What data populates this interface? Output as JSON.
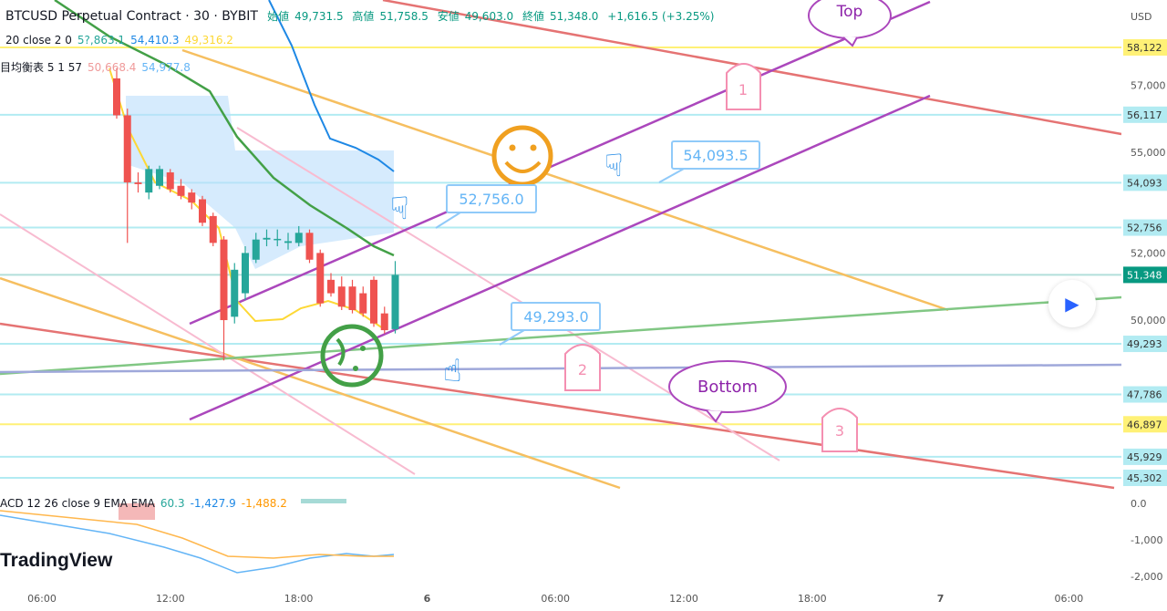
{
  "header": {
    "symbol": "BTCUSD Perpetual Contract · 30 · BYBIT",
    "open_label": "始値",
    "open": "49,731.5",
    "high_label": "高値",
    "high": "51,758.5",
    "low_label": "安値",
    "low": "49,603.0",
    "close_label": "終値",
    "close": "51,348.0",
    "change": "+1,616.5 (+3.25%)"
  },
  "indicators": {
    "bb": {
      "label": "20 close 2 0",
      "v1": "5?,863.1",
      "v2": "54,410.3",
      "v3": "49,316.2"
    },
    "ichimoku": {
      "label": "目均衡表 5 1 57",
      "v1": "50,668.4",
      "v2": "54,977.8"
    },
    "macd": {
      "label": "ACD 12 26 close 9 EMA EMA",
      "v1": "60.3",
      "v2": "-1,427.9",
      "v3": "-1,488.2"
    }
  },
  "logo": "TradingView",
  "annotations": {
    "top": "Top",
    "bottom": "Bottom",
    "n1": "1",
    "n2": "2",
    "n3": "3",
    "callout_52756": "52,756.0",
    "callout_54093": "54,093.5",
    "callout_49293": "49,293.0"
  },
  "colors": {
    "up": "#26a69a",
    "down": "#ef5350",
    "last_price": "#089981",
    "hline_cyan": "#b2ebf2",
    "hline_yellow": "#fff59d"
  },
  "chart_data": {
    "type": "candlestick",
    "currency": "USD",
    "time_ticks": [
      "06:00",
      "12:00",
      "18:00",
      "6",
      "06:00",
      "12:00",
      "18:00",
      "7",
      "06:00"
    ],
    "price_ticks": [
      "57,000",
      "55,000",
      "52,000",
      "50,000"
    ],
    "price_labels": [
      {
        "text": "58,122",
        "price": 58122,
        "color": "#fff176"
      },
      {
        "text": "56,117",
        "price": 56117,
        "color": "#b2ebf2"
      },
      {
        "text": "54,093",
        "price": 54093,
        "color": "#b2ebf2"
      },
      {
        "text": "52,756",
        "price": 52756,
        "color": "#b2ebf2"
      },
      {
        "text": "51,348",
        "price": 51348,
        "color": "#089981"
      },
      {
        "text": "49,293",
        "price": 49293,
        "color": "#b2ebf2"
      },
      {
        "text": "47,786",
        "price": 47786,
        "color": "#b2ebf2"
      },
      {
        "text": "46,897",
        "price": 46897,
        "color": "#fff176"
      },
      {
        "text": "45,929",
        "price": 45929,
        "color": "#b2ebf2"
      },
      {
        "text": "45,302",
        "price": 45302,
        "color": "#b2ebf2"
      }
    ],
    "macd_ticks": [
      "0.0",
      "-1,000",
      "-2,000"
    ],
    "candles": [
      [
        57200,
        57500,
        56000,
        56100
      ],
      [
        56100,
        56300,
        52300,
        54100
      ],
      [
        54100,
        54400,
        53800,
        54050
      ],
      [
        53800,
        54600,
        53600,
        54500
      ],
      [
        54000,
        54600,
        53900,
        54500
      ],
      [
        54400,
        54500,
        53800,
        53900
      ],
      [
        54000,
        54200,
        53600,
        53700
      ],
      [
        53800,
        53900,
        53300,
        53500
      ],
      [
        53600,
        53700,
        52800,
        52900
      ],
      [
        53100,
        53200,
        52200,
        52300
      ],
      [
        52400,
        52500,
        48800,
        50000
      ],
      [
        50100,
        51700,
        49900,
        51500
      ],
      [
        50800,
        52200,
        50600,
        52000
      ],
      [
        51800,
        52600,
        51700,
        52400
      ],
      [
        52400,
        52700,
        52200,
        52450
      ],
      [
        52400,
        52700,
        52200,
        52420
      ],
      [
        52300,
        52600,
        52100,
        52350
      ],
      [
        52300,
        52800,
        52200,
        52600
      ],
      [
        52600,
        52700,
        51700,
        51800
      ],
      [
        52000,
        52100,
        50400,
        50500
      ],
      [
        51200,
        51400,
        50700,
        50800
      ],
      [
        51000,
        51300,
        50300,
        50400
      ],
      [
        51000,
        51200,
        50200,
        50300
      ],
      [
        50800,
        51000,
        50100,
        50200
      ],
      [
        51200,
        51300,
        49800,
        49900
      ],
      [
        50200,
        50400,
        49600,
        49700
      ],
      [
        49731.5,
        51758.5,
        49603,
        51348
      ]
    ]
  }
}
